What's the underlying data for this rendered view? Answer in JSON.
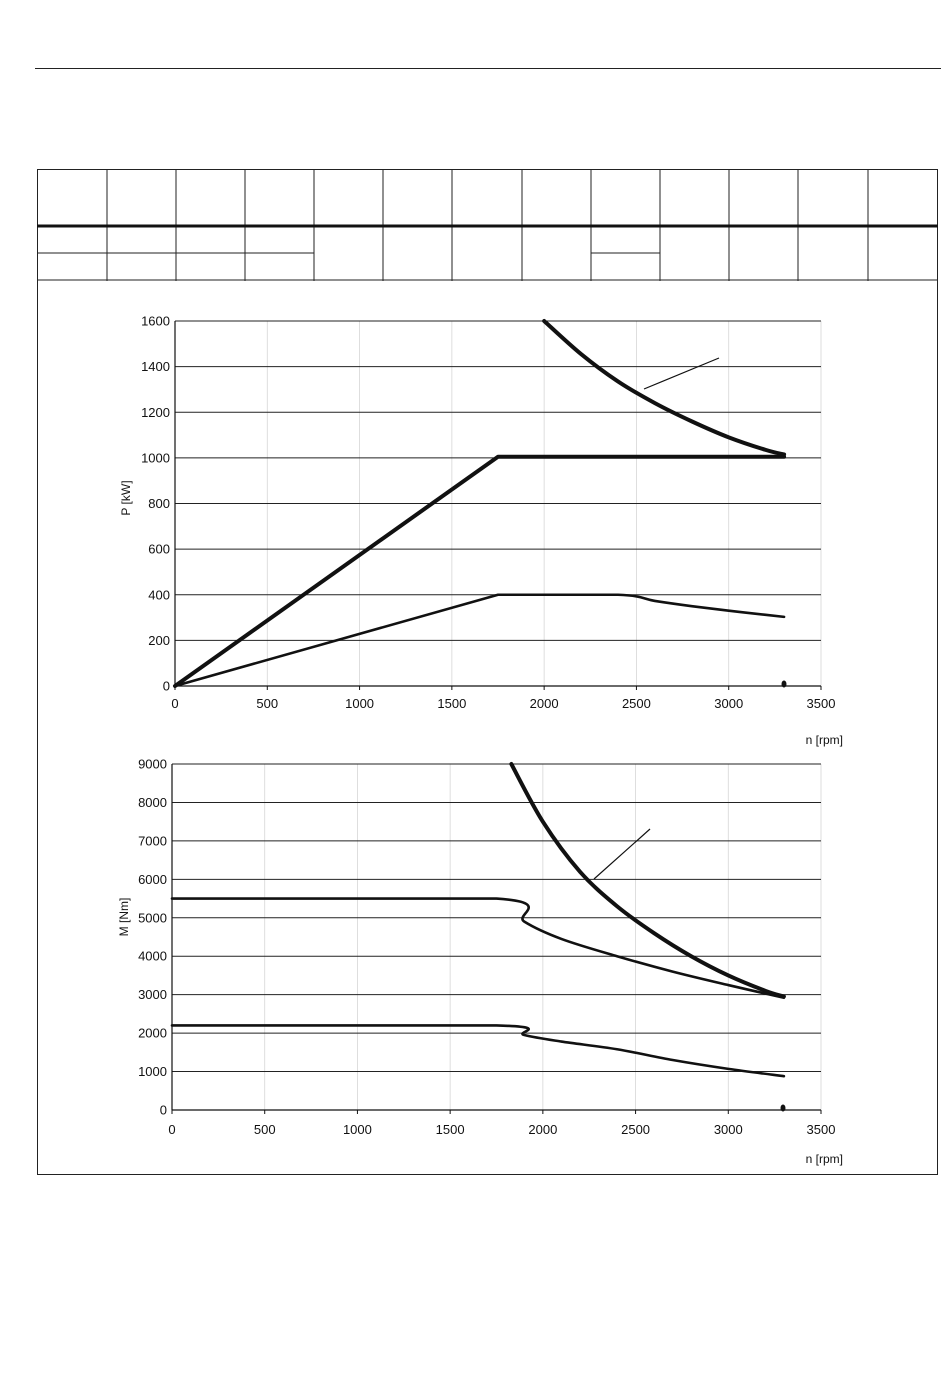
{
  "chart_data": [
    {
      "type": "line",
      "title": "",
      "xlabel": "n [rpm]",
      "ylabel": "P [kW]",
      "xlim": [
        0,
        3500
      ],
      "ylim": [
        0,
        1600
      ],
      "x_ticks": [
        0,
        500,
        1000,
        1500,
        2000,
        2500,
        3000,
        3500
      ],
      "y_ticks": [
        0,
        200,
        400,
        600,
        800,
        1000,
        1200,
        1400,
        1600
      ],
      "grid": true,
      "series": [
        {
          "x": [
            0,
            1750,
            3300
          ],
          "y": [
            0,
            1005,
            1005
          ],
          "weight": "heavy"
        },
        {
          "x": [
            2000,
            2200,
            2400,
            2600,
            2800,
            3000,
            3200,
            3300
          ],
          "y": [
            1600,
            1455,
            1335,
            1240,
            1160,
            1090,
            1035,
            1015
          ],
          "weight": "heavy"
        },
        {
          "x": [
            0,
            1750,
            2400,
            2600,
            2800,
            3000,
            3200,
            3300
          ],
          "y": [
            0,
            400,
            400,
            373,
            350,
            330,
            312,
            303
          ],
          "weight": "medium"
        }
      ]
    },
    {
      "type": "line",
      "title": "",
      "xlabel": "n [rpm]",
      "ylabel": "M [Nm]",
      "xlim": [
        0,
        3500
      ],
      "ylim": [
        0,
        9000
      ],
      "x_ticks": [
        0,
        500,
        1000,
        1500,
        2000,
        2500,
        3000,
        3500
      ],
      "y_ticks": [
        0,
        1000,
        2000,
        3000,
        4000,
        5000,
        6000,
        7000,
        8000,
        9000
      ],
      "grid": true,
      "series": [
        {
          "x": [
            1830,
            2000,
            2200,
            2400,
            2600,
            2800,
            3000,
            3200,
            3300
          ],
          "y": [
            9000,
            7500,
            6200,
            5300,
            4600,
            4000,
            3500,
            3100,
            2950
          ],
          "weight": "heavy"
        },
        {
          "x": [
            0,
            1750,
            1900,
            2100,
            2400,
            2700,
            3000,
            3300
          ],
          "y": [
            5500,
            5500,
            4900,
            4450,
            4000,
            3600,
            3250,
            2920
          ],
          "weight": "medium"
        },
        {
          "x": [
            0,
            1750,
            1900,
            2100,
            2400,
            2700,
            3000,
            3300
          ],
          "y": [
            2200,
            2200,
            1950,
            1780,
            1580,
            1300,
            1070,
            880
          ],
          "weight": "medium"
        }
      ]
    }
  ]
}
